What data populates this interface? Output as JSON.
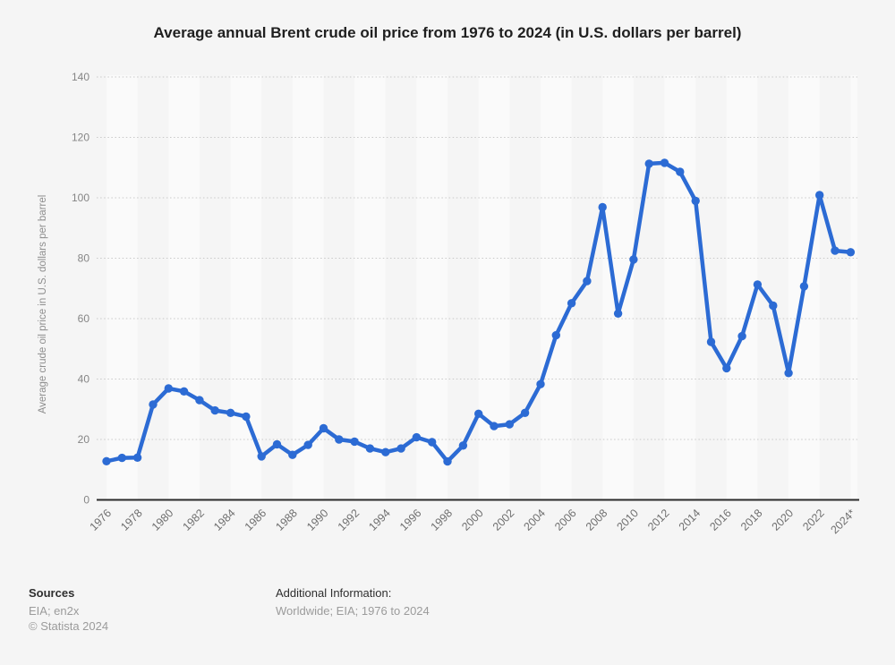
{
  "title": "Average annual Brent crude oil price from 1976 to 2024 (in U.S. dollars per barrel)",
  "y_axis_label": "Average crude oil price in U.S. dollars per barrel",
  "footer": {
    "sources_heading": "Sources",
    "sources_line1": "EIA; en2x",
    "sources_line2": "© Statista 2024",
    "additional_heading": "Additional Information:",
    "additional_line1": "Worldwide; EIA; 1976 to 2024"
  },
  "colors": {
    "background": "#f5f5f5",
    "stripe_light": "#fafafa",
    "grid": "#c9c9c9",
    "axis": "#2b2b2b",
    "line": "#2c6bd4"
  },
  "chart_data": {
    "type": "line",
    "title": "Average annual Brent crude oil price from 1976 to 2024 (in U.S. dollars per barrel)",
    "xlabel": "",
    "ylabel": "Average crude oil price in U.S. dollars per barrel",
    "x": [
      1976,
      1977,
      1978,
      1979,
      1980,
      1981,
      1982,
      1983,
      1984,
      1985,
      1986,
      1987,
      1988,
      1989,
      1990,
      1991,
      1992,
      1993,
      1994,
      1995,
      1996,
      1997,
      1998,
      1999,
      2000,
      2001,
      2002,
      2003,
      2004,
      2005,
      2006,
      2007,
      2008,
      2009,
      2010,
      2011,
      2012,
      2013,
      2014,
      2015,
      2016,
      2017,
      2018,
      2019,
      2020,
      2021,
      2022,
      2023,
      2024
    ],
    "series": [
      {
        "name": "Brent crude oil price (U.S. dollars per barrel)",
        "values": [
          12.8,
          13.9,
          14.0,
          31.6,
          36.9,
          35.9,
          33.0,
          29.6,
          28.8,
          27.6,
          14.4,
          18.4,
          14.9,
          18.2,
          23.7,
          20.0,
          19.3,
          17.0,
          15.8,
          17.0,
          20.7,
          19.1,
          12.7,
          18.0,
          28.5,
          24.4,
          25.0,
          28.8,
          38.3,
          54.5,
          65.1,
          72.4,
          96.9,
          61.7,
          79.6,
          111.3,
          111.6,
          108.6,
          99.0,
          52.3,
          43.6,
          54.2,
          71.3,
          64.3,
          42.0,
          70.7,
          100.9,
          82.5,
          82.0
        ]
      }
    ],
    "x_tick_labels": [
      "1976",
      "1978",
      "1980",
      "1982",
      "1984",
      "1986",
      "1988",
      "1990",
      "1992",
      "1994",
      "1996",
      "1998",
      "2000",
      "2002",
      "2004",
      "2006",
      "2008",
      "2010",
      "2012",
      "2014",
      "2016",
      "2018",
      "2020",
      "2022",
      "2024*"
    ],
    "y_ticks": [
      0,
      20,
      40,
      60,
      80,
      100,
      120,
      140
    ],
    "ylim": [
      0,
      140
    ],
    "grid": "horizontal-dotted",
    "legend": "none",
    "marker": "circle",
    "background_bands": "alternating 2-year vertical stripes"
  }
}
